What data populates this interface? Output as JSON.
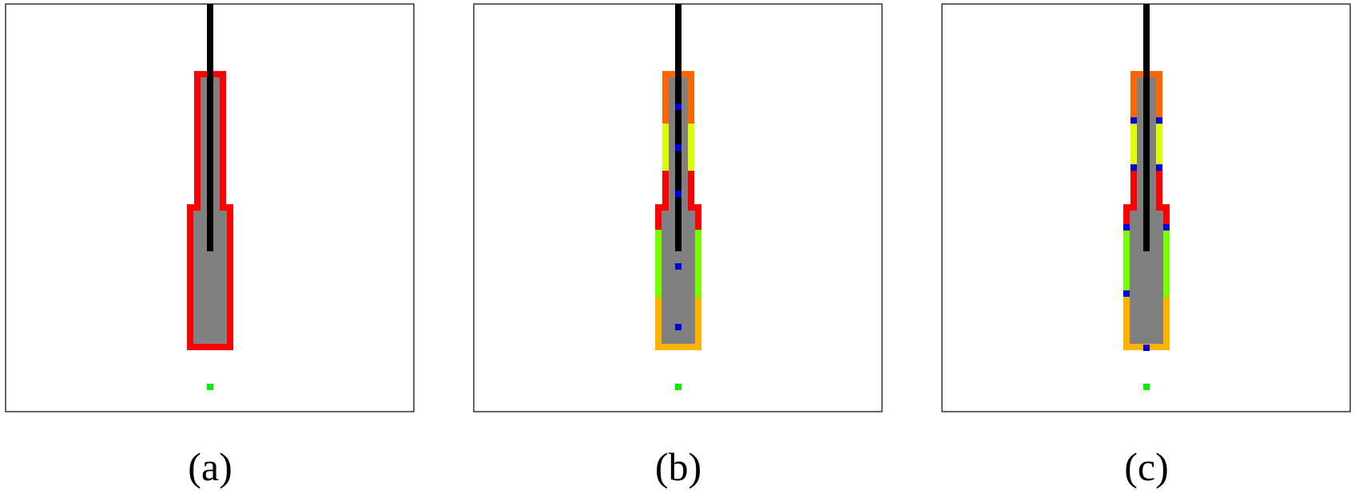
{
  "colors": {
    "background": "#ffffff",
    "frame": "#000000",
    "fill": "#808080",
    "rod": "#000000",
    "target": "#00ee00",
    "marker": "#0000dd",
    "outline_a": "#ff0000",
    "segment_top": "#ff6600",
    "segment_upper": "#ddff00",
    "segment_middle": "#ff0000",
    "segment_lower": "#77ff00",
    "segment_bottom": "#ffb300"
  },
  "panels": [
    {
      "caption": "(a)",
      "style": "single-outline",
      "markers": "none"
    },
    {
      "caption": "(b)",
      "style": "segmented-outline",
      "markers": "along-axis"
    },
    {
      "caption": "(c)",
      "style": "segmented-outline",
      "markers": "on-boundary"
    }
  ]
}
